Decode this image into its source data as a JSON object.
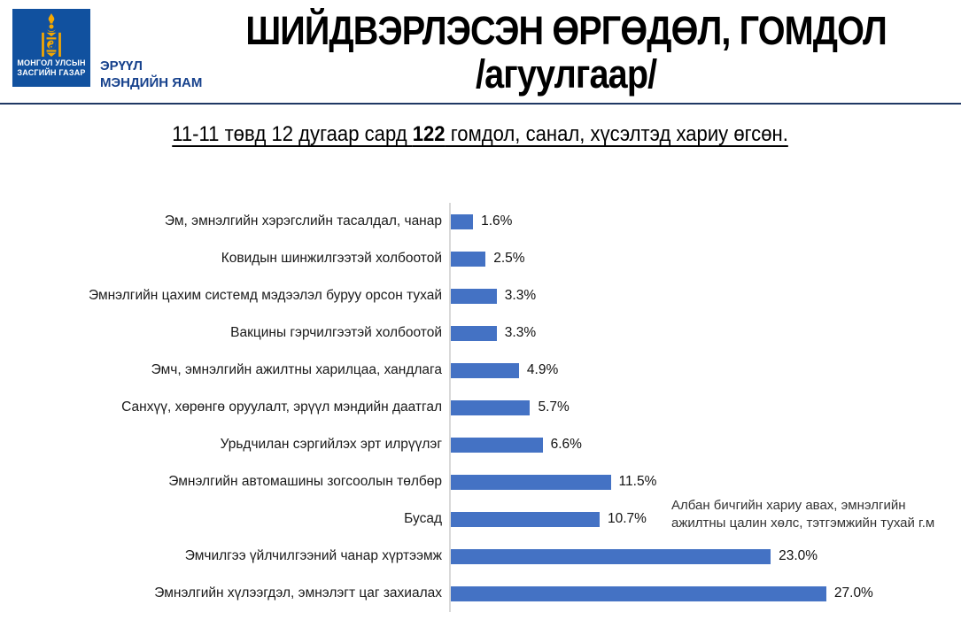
{
  "header": {
    "logo": {
      "emblem_icon": "soyombo-icon",
      "square_color": "#11519f",
      "emblem_color": "#f5a800",
      "caption_line1": "МОНГОЛ УЛСЫН",
      "caption_line2": "ЗАСГИЙН ГАЗАР"
    },
    "ministry_line1": "ЭРҮҮЛ",
    "ministry_line2": "МЭНДИЙН ЯАМ",
    "title_line1": "ШИЙДВЭРЛЭСЭН ӨРГӨДӨЛ, ГОМДОЛ",
    "title_line2": "/агуулгаар/"
  },
  "subtitle": {
    "prefix": "11-11 төвд 12 дугаар сард ",
    "highlight": "122",
    "suffix": " гомдол, санал, хүсэлтэд хариу өгсөн."
  },
  "chart_data": {
    "type": "bar",
    "orientation": "horizontal",
    "categories": [
      "Эм, эмнэлгийн хэрэгслийн тасалдал, чанар",
      "Ковидын шинжилгээтэй холбоотой",
      "Эмнэлгийн цахим системд мэдээлэл буруу орсон тухай",
      "Вакцины гэрчилгээтэй холбоотой",
      "Эмч, эмнэлгийн ажилтны харилцаа, хандлага",
      "Санхүү, хөрөнгө оруулалт, эрүүл мэндийн даатгал",
      "Урьдчилан сэргийлэх эрт илрүүлэг",
      "Эмнэлгийн автомашины зогсоолын төлбөр",
      "Бусад",
      "Эмчилгээ үйлчилгээний чанар хүртээмж",
      "Эмнэлгийн хүлээгдэл, эмнэлэгт цаг захиалах"
    ],
    "values": [
      1.6,
      2.5,
      3.3,
      3.3,
      4.9,
      5.7,
      6.6,
      11.5,
      10.7,
      23.0,
      27.0
    ],
    "value_labels": [
      "1.6%",
      "2.5%",
      "3.3%",
      "3.3%",
      "4.9%",
      "5.7%",
      "6.6%",
      "11.5%",
      "10.7%",
      "23.0%",
      "27.0%"
    ],
    "annotation": {
      "text": "Албан бичгийн хариу авах, эмнэлгийн ажилтны цалин хөлс, тэтгэмжийн тухай г.м",
      "attached_to": "Бусад"
    },
    "title": "ШИЙДВЭРЛЭСЭН ӨРГӨДӨЛ, ГОМДОЛ /агуулгаар/",
    "xlabel": "",
    "ylabel": "",
    "xlim": [
      0,
      28.5
    ],
    "bar_color": "#4472c4",
    "axis_color": "#d9d9d9",
    "grid": false,
    "legend": false
  }
}
